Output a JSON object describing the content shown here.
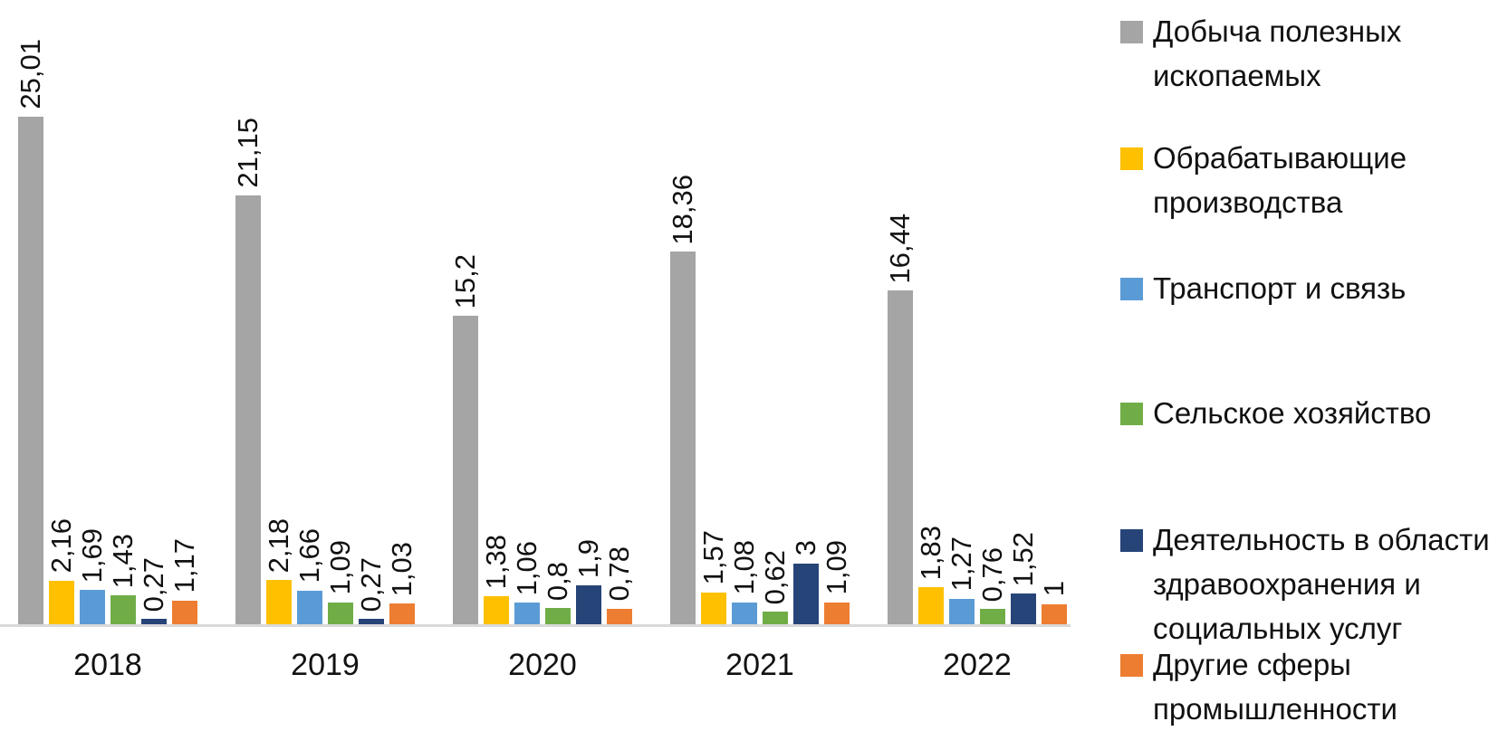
{
  "chart_data": {
    "type": "bar",
    "title": "",
    "xlabel": "",
    "ylabel": "",
    "categories": [
      "2018",
      "2019",
      "2020",
      "2021",
      "2022"
    ],
    "series": [
      {
        "key": "mining",
        "name": "Добыча полезных ископаемых",
        "color": "#A5A5A5",
        "values": [
          25.01,
          21.15,
          15.2,
          18.36,
          16.44
        ],
        "labels": [
          "25,01",
          "21,15",
          "15,2",
          "18,36",
          "16,44"
        ]
      },
      {
        "key": "manufacturing",
        "name": "Обрабатывающие производства",
        "color": "#FFC000",
        "values": [
          2.16,
          2.18,
          1.38,
          1.57,
          1.83
        ],
        "labels": [
          "2,16",
          "2,18",
          "1,38",
          "1,57",
          "1,83"
        ]
      },
      {
        "key": "transport-and-communication",
        "name": "Транспорт и связь",
        "color": "#5B9BD5",
        "values": [
          1.69,
          1.66,
          1.06,
          1.08,
          1.27
        ],
        "labels": [
          "1,69",
          "1,66",
          "1,06",
          "1,08",
          "1,27"
        ]
      },
      {
        "key": "agriculture",
        "name": "Сельское хозяйство",
        "color": "#70AD47",
        "values": [
          1.43,
          1.09,
          0.8,
          0.62,
          0.76
        ],
        "labels": [
          "1,43",
          "1,09",
          "0,8",
          "0,62",
          "0,76"
        ]
      },
      {
        "key": "healthcare-social-services",
        "name": "Деятельность в области здравоохранения и социальных услуг",
        "color": "#264478",
        "values": [
          0.27,
          0.27,
          1.9,
          3,
          1.52
        ],
        "labels": [
          "0,27",
          "0,27",
          "1,9",
          "3",
          "1,52"
        ]
      },
      {
        "key": "other-industries",
        "name": "Другие сферы промышленности",
        "color": "#ED7D31",
        "values": [
          1.17,
          1.03,
          0.78,
          1.09,
          1
        ],
        "labels": [
          "1,17",
          "1,03",
          "0,78",
          "1,09",
          "1"
        ]
      }
    ],
    "ylim": [
      0,
      25.01
    ],
    "grid": false,
    "legend_position": "right",
    "value_label_rotation": -90,
    "decimal_separator": ",",
    "axis_line_color": "#D9D9D9"
  }
}
